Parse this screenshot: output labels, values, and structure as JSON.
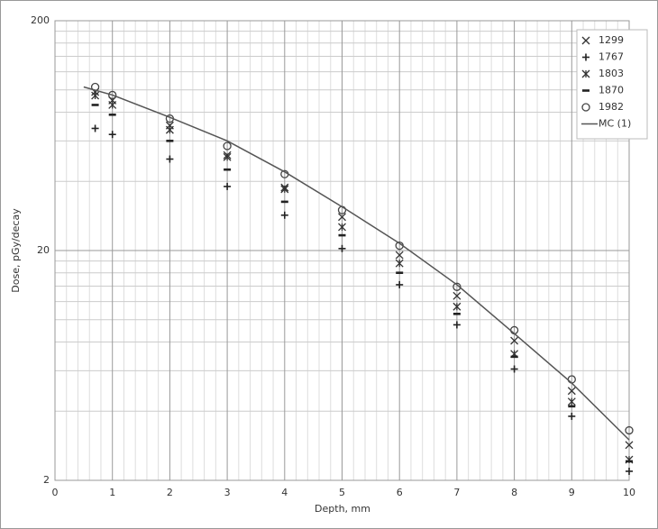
{
  "chart_data": {
    "type": "scatter",
    "xlabel": "Depth, mm",
    "ylabel": "Dose, pGy/decay",
    "xlim": [
      0,
      10
    ],
    "xticks": [
      0,
      1,
      2,
      3,
      4,
      5,
      6,
      7,
      8,
      9,
      10
    ],
    "ylim": [
      2,
      200
    ],
    "yticks": [
      2,
      20,
      200
    ],
    "ylog": true,
    "grid": true,
    "legend": "upper right",
    "series": [
      {
        "name": "1299",
        "marker": "x",
        "color": "#333333",
        "x": [
          0.7,
          1,
          2,
          3,
          4,
          5,
          6,
          7,
          8,
          9,
          10
        ],
        "values": [
          98,
          90,
          70,
          52,
          37.6,
          28,
          19.1,
          12.7,
          8.1,
          4.9,
          2.85
        ]
      },
      {
        "name": "1767",
        "marker": "+",
        "color": "#222222",
        "x": [
          0.7,
          1,
          2,
          3,
          4,
          5,
          6,
          7,
          8,
          9,
          10
        ],
        "values": [
          68,
          64,
          50,
          38,
          28.5,
          20.4,
          14.2,
          9.5,
          6.1,
          3.8,
          2.19
        ]
      },
      {
        "name": "1803",
        "marker": "*",
        "color": "#333333",
        "x": [
          0.7,
          1,
          2,
          3,
          4,
          5,
          6,
          7,
          8,
          9,
          10
        ],
        "values": [
          94.5,
          86,
          67,
          51,
          37,
          25.3,
          17.6,
          11.4,
          7.1,
          4.4,
          2.46
        ]
      },
      {
        "name": "1870",
        "marker": "-",
        "color": "#222222",
        "x": [
          0.7,
          1,
          2,
          3,
          4,
          5,
          6,
          7,
          8,
          9,
          10
        ],
        "values": [
          86,
          78,
          60,
          45,
          32.6,
          23.3,
          16,
          10.6,
          6.9,
          4.2,
          2.42
        ]
      },
      {
        "name": "1982",
        "marker": "o",
        "color": "#444444",
        "x": [
          0.7,
          1,
          2,
          3,
          4,
          5,
          6,
          7,
          8,
          9,
          10
        ],
        "values": [
          103,
          95,
          75,
          57,
          43,
          30,
          21,
          13.9,
          9.0,
          5.5,
          3.3
        ]
      },
      {
        "name": "MC (1)",
        "marker": "line",
        "color": "#555555",
        "x": [
          0.5,
          1,
          2,
          3,
          4,
          5,
          6,
          7,
          8,
          9,
          10
        ],
        "values": [
          103,
          95,
          76,
          60,
          44,
          31,
          21.5,
          14.2,
          8.7,
          5.3,
          3.0
        ]
      }
    ]
  }
}
